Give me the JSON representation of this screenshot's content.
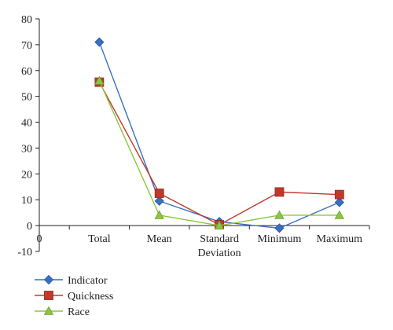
{
  "chart_data": {
    "type": "line",
    "title": "",
    "xlabel": "",
    "ylabel": "",
    "ylim": [
      -10,
      80
    ],
    "y_ticks": [
      -10,
      0,
      10,
      20,
      30,
      40,
      50,
      60,
      70,
      80
    ],
    "x_origin_label": "0",
    "categories": [
      "Total",
      "Mean",
      "Standard\nDeviation",
      "Minimum",
      "Maximum"
    ],
    "grid": false,
    "legend_position": "bottom-left",
    "series": [
      {
        "name": "Indicator",
        "color": "#3a6fc4",
        "marker": "diamond",
        "values": [
          71,
          9.5,
          1.5,
          -1,
          9
        ]
      },
      {
        "name": "Quickness",
        "color": "#c0392b",
        "marker": "square",
        "values": [
          55.5,
          12.5,
          0.3,
          13,
          12
        ]
      },
      {
        "name": "Race",
        "color": "#8cc63f",
        "marker": "triangle",
        "values": [
          56,
          4,
          0,
          4,
          4
        ]
      }
    ]
  }
}
